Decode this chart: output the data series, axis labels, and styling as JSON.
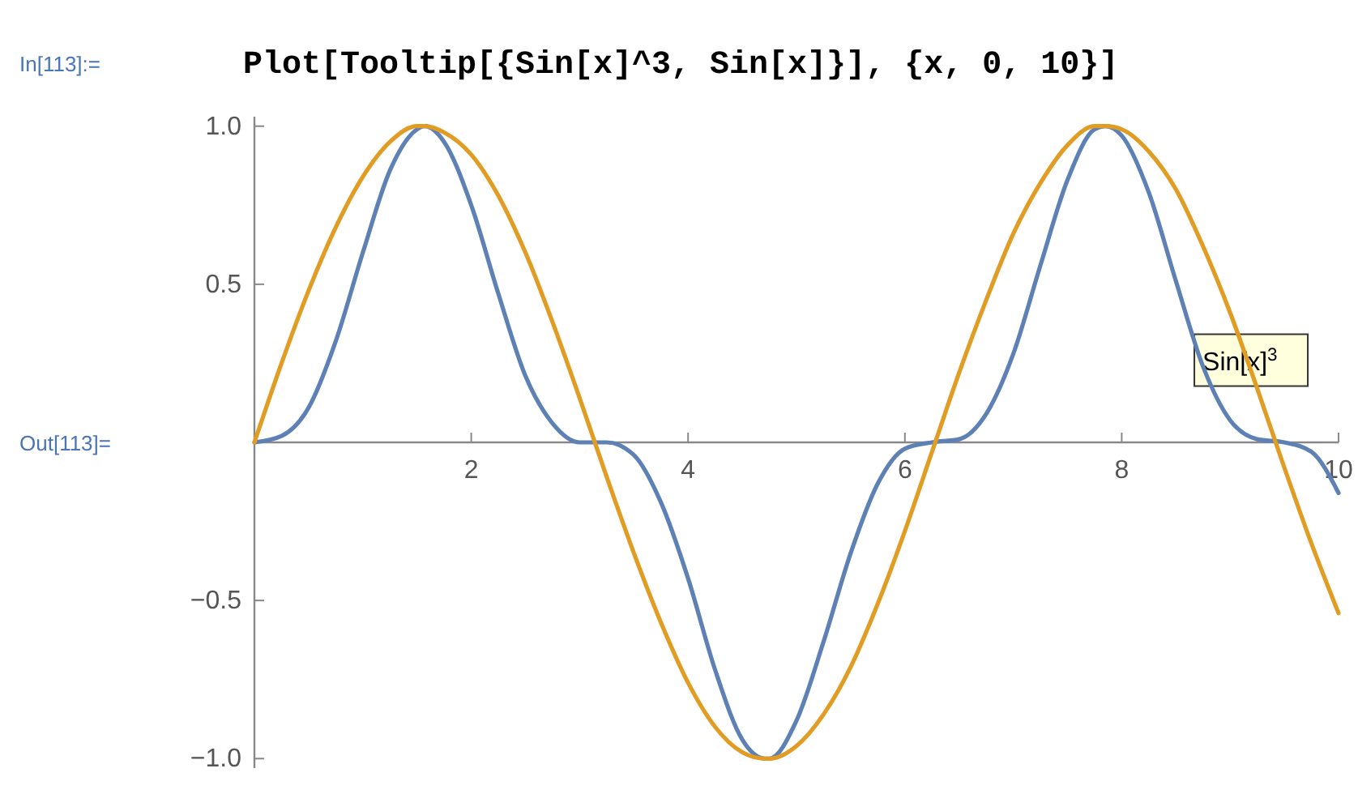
{
  "chart_data": {
    "type": "line",
    "title": "Plot[Tooltip[{Sin[x]^3, Sin[x]}], {x, 0, 10}]",
    "annotations": [
      "In[113]:=",
      "Out[113]=",
      {
        "text": "Sin[x]$^{3}$",
        "x": 8.67,
        "y": 0.26
      }
    ],
    "x": [
      0,
      0.25,
      0.5,
      0.75,
      1,
      1.25,
      1.5,
      1.57,
      1.75,
      2,
      2.25,
      2.5,
      2.75,
      3,
      3.25,
      3.5,
      3.75,
      4,
      4.25,
      4.5,
      4.71,
      4.75,
      5,
      5.25,
      5.5,
      5.75,
      6,
      6.25,
      6.5,
      6.75,
      7,
      7.25,
      7.5,
      7.75,
      7.85,
      8,
      8.25,
      8.5,
      8.75,
      9,
      9.25,
      9.5,
      9.75,
      10
    ],
    "series": [
      {
        "color": "#5e81b5",
        "values": [
          0,
          0.02,
          0.11,
          0.32,
          0.6,
          0.86,
          0.99,
          1,
          0.95,
          0.75,
          0.47,
          0.21,
          0.06,
          0,
          0,
          -0.04,
          -0.19,
          -0.43,
          -0.72,
          -0.94,
          -1,
          -1,
          -0.88,
          -0.63,
          -0.35,
          -0.13,
          -0.02,
          0,
          0.01,
          0.09,
          0.28,
          0.56,
          0.83,
          0.99,
          1,
          0.97,
          0.79,
          0.51,
          0.24,
          0.07,
          0.01,
          0,
          -0.03,
          -0.16
        ]
      },
      {
        "color": "#e19c24",
        "values": [
          0,
          0.25,
          0.48,
          0.68,
          0.84,
          0.95,
          1,
          1,
          0.98,
          0.91,
          0.78,
          0.6,
          0.38,
          0.14,
          -0.11,
          -0.35,
          -0.57,
          -0.76,
          -0.9,
          -0.98,
          -1,
          -1,
          -0.96,
          -0.86,
          -0.71,
          -0.51,
          -0.28,
          -0.03,
          0.22,
          0.45,
          0.66,
          0.82,
          0.94,
          1,
          1,
          0.99,
          0.92,
          0.8,
          0.62,
          0.41,
          0.17,
          -0.08,
          -0.32,
          -0.54
        ]
      }
    ],
    "xlim": [
      0,
      10
    ],
    "ylim": [
      -1.03,
      1.03
    ],
    "xticks": [
      2,
      4,
      6,
      8,
      10
    ],
    "yticks": [
      {
        "value": -1,
        "label": "−1.0"
      },
      {
        "value": -0.5,
        "label": "−0.5"
      },
      {
        "value": 0.5,
        "label": "0.5"
      },
      {
        "value": 1,
        "label": "1.0"
      }
    ]
  }
}
